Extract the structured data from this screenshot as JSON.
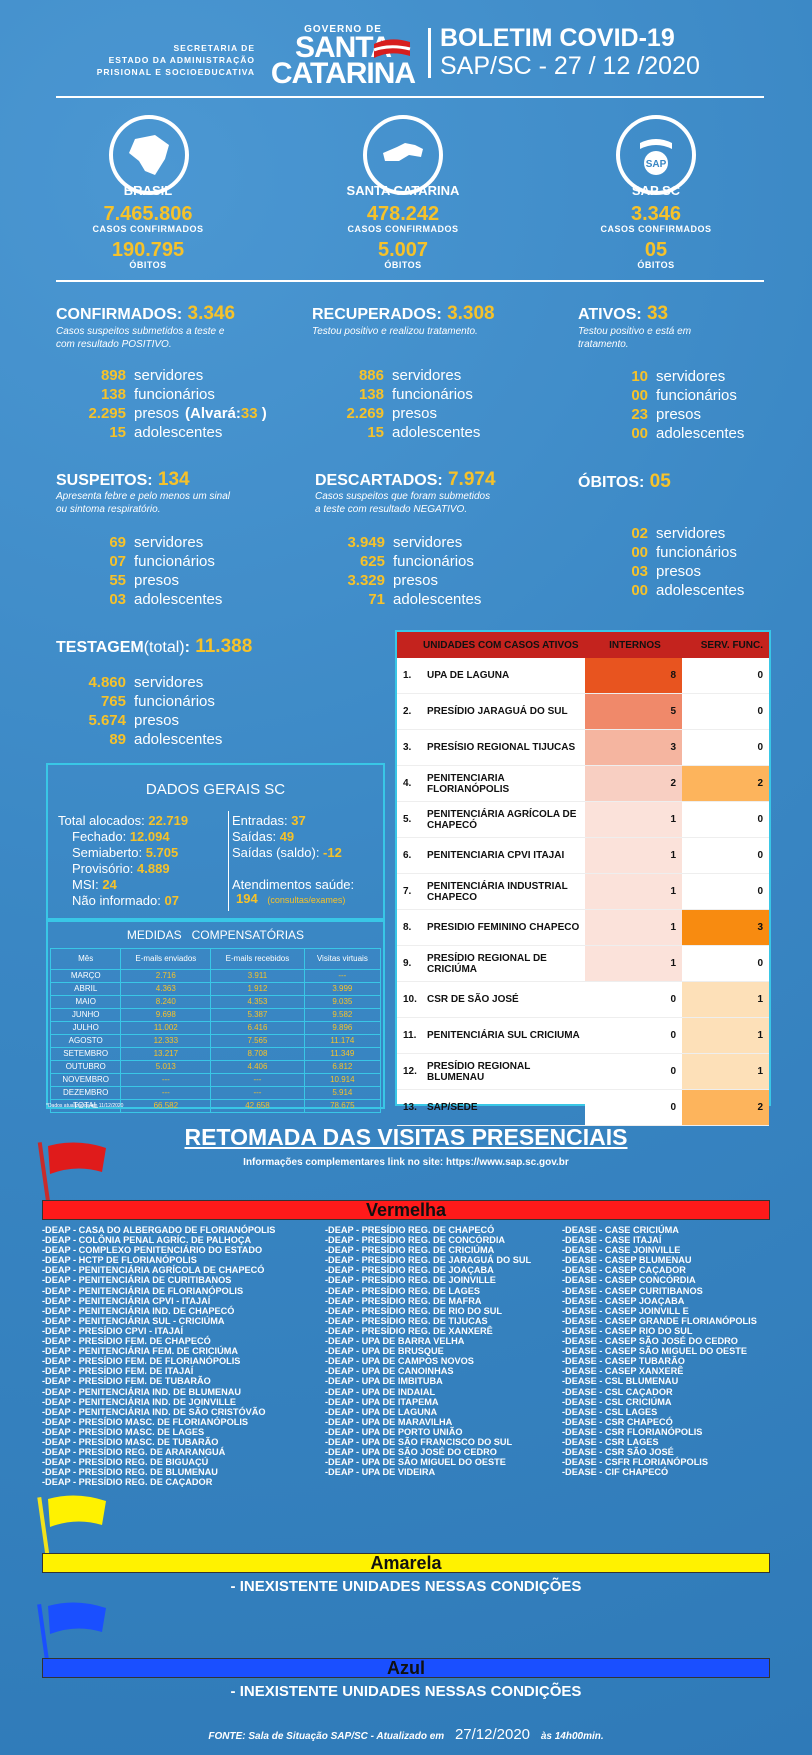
{
  "header": {
    "secretaria": [
      "SECRETARIA DE",
      "ESTADO DA ADMINISTRAÇÃO",
      "PRISIONAL E SOCIOEDUCATIVA"
    ],
    "gov_small": "GOVERNO DE",
    "gov_big1": "SANTA",
    "gov_big2": "CATARINA",
    "title1": "BOLETIM COVID-19",
    "title2": "SAP/SC - 27 / 12 /2020"
  },
  "regions": [
    {
      "name": "BRASIL",
      "casos": "7.465.806",
      "casos_label": "CASOS CONFIRMADOS",
      "obitos": "190.795",
      "obitos_label": "ÓBITOS"
    },
    {
      "name": "SANTA CATARINA",
      "casos": "478.242",
      "casos_label": "CASOS CONFIRMADOS",
      "obitos": "5.007",
      "obitos_label": "ÓBITOS"
    },
    {
      "name": "SAP SC",
      "casos": "3.346",
      "casos_label": "CASOS CONFIRMADOS",
      "obitos": "05",
      "obitos_label": "ÓBITOS",
      "logo_text": "SAP"
    }
  ],
  "sections": {
    "confirmados": {
      "label": "CONFIRMADOS:",
      "value": "3.346",
      "desc1": "Casos suspeitos submetidos a teste e",
      "desc2": "com resultado POSITIVO.",
      "rows": [
        [
          "898",
          "servidores"
        ],
        [
          "138",
          "funcionários"
        ],
        [
          "2.295",
          "presos"
        ],
        [
          "15",
          "adolescentes"
        ]
      ],
      "alvara_label": "(Alvará:",
      "alvara_value": "33",
      "alvara_close": ")"
    },
    "recuperados": {
      "label": "RECUPERADOS:",
      "value": "3.308",
      "desc1": "Testou positivo e realizou tratamento.",
      "rows": [
        [
          "886",
          "servidores"
        ],
        [
          "138",
          "funcionários"
        ],
        [
          "2.269",
          "presos"
        ],
        [
          "15",
          "adolescentes"
        ]
      ]
    },
    "ativos": {
      "label": "ATIVOS:",
      "value": "33",
      "desc1": "Testou positivo e está em",
      "desc2": " tratamento.",
      "rows": [
        [
          "10",
          "servidores"
        ],
        [
          "00",
          "funcionários"
        ],
        [
          "23",
          "presos"
        ],
        [
          "00",
          "adolescentes"
        ]
      ]
    },
    "suspeitos": {
      "label": "SUSPEITOS:",
      "value": "134",
      "desc1": "Apresenta febre e pelo menos um sinal",
      "desc2": "ou sintoma respiratório.",
      "rows": [
        [
          "69",
          "servidores"
        ],
        [
          "07",
          "funcionários"
        ],
        [
          "55",
          "presos"
        ],
        [
          "03",
          "adolescentes"
        ]
      ]
    },
    "descartados": {
      "label": "DESCARTADOS:",
      "value": "7.974",
      "desc1": "Casos suspeitos que foram submetidos",
      "desc2": " a  teste com resultado NEGATIVO.",
      "rows": [
        [
          "3.949",
          "servidores"
        ],
        [
          "625",
          "funcionários"
        ],
        [
          "3.329",
          "presos"
        ],
        [
          "71",
          "adolescentes"
        ]
      ]
    },
    "obitos": {
      "label": "ÓBITOS:",
      "value": "05",
      "rows": [
        [
          "02",
          "servidores"
        ],
        [
          "00",
          "funcionários"
        ],
        [
          "03",
          "presos"
        ],
        [
          "00",
          "adolescentes"
        ]
      ]
    },
    "testagem": {
      "label": "TESTAGEM",
      "paren": "(total)",
      "colon": ":",
      "value": "11.388",
      "rows": [
        [
          "4.860",
          "servidores"
        ],
        [
          "765",
          "funcionários"
        ],
        [
          "5.674",
          "presos"
        ],
        [
          "89",
          "adolescentes"
        ]
      ]
    }
  },
  "dados_gerais": {
    "title": "DADOS GERAIS SC",
    "left": [
      [
        "Total alocados:",
        "22.719"
      ],
      [
        "Fechado:",
        "12.094"
      ],
      [
        "Semiaberto:",
        "5.705"
      ],
      [
        "Provisório:",
        "4.889"
      ],
      [
        "MSI:",
        "24"
      ],
      [
        "Não informado:",
        "07"
      ]
    ],
    "right": [
      [
        "Entradas:",
        "37"
      ],
      [
        "Saídas:",
        "49"
      ],
      [
        "Saídas (saldo):",
        "-12"
      ]
    ],
    "atend_label": "Atendimentos saúde:",
    "atend_value": "194",
    "atend_note": "(consultas/exames)"
  },
  "medidas": {
    "title": "MEDIDAS   COMPENSATÓRIAS",
    "headers": [
      "Mês",
      "E-mails enviados",
      "E-mails recebidos",
      "Visitas virtuais"
    ],
    "rows": [
      [
        "MARÇO",
        "2.716",
        "3.911",
        "---"
      ],
      [
        "ABRIL",
        "4.363",
        "1.912",
        "3.999"
      ],
      [
        "MAIO",
        "8.240",
        "4.353",
        "9.035"
      ],
      [
        "JUNHO",
        "9.698",
        "5.387",
        "9.582"
      ],
      [
        "JULHO",
        "11.002",
        "6.416",
        "9.896"
      ],
      [
        "AGOSTO",
        "12.333",
        "7.565",
        "11.174"
      ],
      [
        "SETEMBRO",
        "13.217",
        "8.708",
        "11.349"
      ],
      [
        "OUTUBRO",
        "5.013",
        "4.406",
        "6.812"
      ],
      [
        "NOVEMBRO",
        "---",
        "---",
        "10.914"
      ],
      [
        "DEZEMBRO",
        "---",
        "---",
        "5.914"
      ],
      [
        "TOTAL",
        "66.582",
        "42.658",
        "78.675"
      ]
    ],
    "note": "*Dados atualizados em 11/12/2020"
  },
  "unidades": {
    "head": [
      "UNIDADES COM CASOS ATIVOS",
      "INTERNOS",
      "SERV. FUNC."
    ],
    "rows": [
      {
        "n": "1.",
        "name": "UPA DE LAGUNA",
        "internos": 8,
        "serv": 0,
        "ic": "#e8541f",
        "sc": "#ffffff"
      },
      {
        "n": "2.",
        "name": "PRESÍDIO JARAGUÁ DO SUL",
        "internos": 5,
        "serv": 0,
        "ic": "#f0896a",
        "sc": "#ffffff"
      },
      {
        "n": "3.",
        "name": "PRESÍSIO REGIONAL TIJUCAS",
        "internos": 3,
        "serv": 0,
        "ic": "#f5b5a0",
        "sc": "#ffffff"
      },
      {
        "n": "4.",
        "name": "PENITENCIARIA FLORIANÓPOLIS",
        "internos": 2,
        "serv": 2,
        "ic": "#f8cfc2",
        "sc": "#fdb45c"
      },
      {
        "n": "5.",
        "name": "PENITENCIÁRIA AGRÍCOLA DE CHAPECÓ",
        "internos": 1,
        "serv": 0,
        "ic": "#fbe2da",
        "sc": "#ffffff"
      },
      {
        "n": "6.",
        "name": "PENITENCIARIA CPVI ITAJAI",
        "internos": 1,
        "serv": 0,
        "ic": "#fbe2da",
        "sc": "#ffffff"
      },
      {
        "n": "7.",
        "name": "PENITENCIÁRIA INDUSTRIAL CHAPECO",
        "internos": 1,
        "serv": 0,
        "ic": "#fbe2da",
        "sc": "#ffffff"
      },
      {
        "n": "8.",
        "name": "PRESIDIO FEMININO CHAPECO",
        "internos": 1,
        "serv": 3,
        "ic": "#fbe2da",
        "sc": "#f88b10"
      },
      {
        "n": "9.",
        "name": "PRESÍDIO REGIONAL DE CRICIÚMA",
        "internos": 1,
        "serv": 0,
        "ic": "#fbe2da",
        "sc": "#ffffff"
      },
      {
        "n": "10.",
        "name": "CSR DE SÃO JOSÉ",
        "internos": 0,
        "serv": 1,
        "ic": "#ffffff",
        "sc": "#fde0b8"
      },
      {
        "n": "11.",
        "name": "PENITENCIÁRIA SUL CRICIUMA",
        "internos": 0,
        "serv": 1,
        "ic": "#ffffff",
        "sc": "#fde0b8"
      },
      {
        "n": "12.",
        "name": "PRESÍDIO REGIONAL BLUMENAU",
        "internos": 0,
        "serv": 1,
        "ic": "#ffffff",
        "sc": "#fde0b8"
      },
      {
        "n": "13.",
        "name": "SAP/SEDE",
        "internos": 0,
        "serv": 2,
        "ic": "#ffffff",
        "sc": "#fdb45c"
      }
    ]
  },
  "retomada": {
    "title": "RETOMADA DAS VISITAS PRESENCIAIS",
    "subtitle": "Informações complementares link no site: https://www.sap.sc.gov.br"
  },
  "vermelha": {
    "label": "Vermelha",
    "color": "#ff1a1a",
    "col1": [
      "-DEAP - CASA DO ALBERGADO DE FLORIANÓPOLIS",
      "-DEAP - COLÔNIA PENAL AGRÍC. DE PALHOÇA",
      "-DEAP - COMPLEXO PENITENCIÁRIO DO ESTADO",
      "-DEAP - HCTP DE FLORIANÓPOLIS",
      "-DEAP - PENITENCIÁRIA AGRÍCOLA DE CHAPECÓ",
      "-DEAP - PENITENCIÁRIA DE CURITIBANOS",
      "-DEAP - PENITENCIÁRIA DE FLORIANÓPOLIS",
      "-DEAP - PENITENCIÁRIA CPVI - ITAJAÍ",
      "-DEAP - PENITENCIÁRIA IND. DE CHAPECÓ",
      "-DEAP - PENITENCIÁRIA SUL - CRICIÚMA",
      "-DEAP - PRESÍDIO CPVI - ITAJAÍ",
      "-DEAP - PRESÍDIO FEM. DE CHAPECÓ",
      "-DEAP - PENITENCIÁRIA FEM. DE CRICIÚMA",
      "-DEAP - PRESÍDIO FEM. DE FLORIANÓPOLIS",
      "-DEAP - PRESÍDIO FEM. DE ITAJAÍ",
      "-DEAP - PRESÍDIO FEM. DE TUBARÃO",
      "-DEAP - PENITENCIÁRIA IND. DE BLUMENAU",
      "-DEAP - PENITENCIÁRIA IND. DE JOINVILLE",
      "-DEAP - PENITENCIÁRIA IND. DE SÃO CRISTÓVÃO",
      "-DEAP - PRESÍDIO MASC. DE FLORIANÓPOLIS",
      "-DEAP - PRESÍDIO MASC. DE LAGES",
      "-DEAP - PRESÍDIO MASC. DE TUBARÃO",
      "-DEAP - PRESÍDIO REG. DE ARARANGUÁ",
      "-DEAP - PRESÍDIO REG. DE BIGUAÇÚ",
      "-DEAP - PRESÍDIO REG. DE BLUMENAU",
      "-DEAP - PRESÍDIO REG. DE CAÇADOR"
    ],
    "col2": [
      "-DEAP - PRESÍDIO REG. DE CHAPECÓ",
      "-DEAP - PRESÍDIO REG. DE CONCÓRDIA",
      "-DEAP - PRESÍDIO REG. DE CRICIÚMA",
      "-DEAP - PRESÍDIO REG. DE JARAGUÁ DO SUL",
      "-DEAP - PRESÍDIO REG. DE JOAÇABA",
      "-DEAP - PRESÍDIO REG. DE JOINVILLE",
      "-DEAP - PRESÍDIO REG. DE LAGES",
      "-DEAP - PRESÍDIO REG. DE MAFRA",
      "-DEAP - PRESÍDIO REG. DE RIO DO SUL",
      "-DEAP - PRESÍDIO REG. DE TIJUCAS",
      "-DEAP - PRESÍDIO REG. DE XANXERÊ",
      "-DEAP - UPA DE BARRA VELHA",
      "-DEAP - UPA DE BRUSQUE",
      "-DEAP - UPA DE CAMPOS NOVOS",
      "-DEAP - UPA DE CANOINHAS",
      "-DEAP - UPA DE IMBITUBA",
      "-DEAP - UPA DE INDAIAL",
      "-DEAP - UPA DE ITAPEMA",
      "-DEAP - UPA DE LAGUNA",
      "-DEAP - UPA DE MARAVILHA",
      "-DEAP - UPA DE PORTO UNIÃO",
      "-DEAP - UPA DE SÃO FRANCISCO DO SUL",
      "-DEAP - UPA DE SÃO JOSÉ DO CEDRO",
      "-DEAP - UPA DE SÃO MIGUEL DO OESTE",
      "-DEAP - UPA DE VIDEIRA"
    ],
    "col3": [
      "-DEASE - CASE CRICIÚMA",
      "-DEASE - CASE ITAJAÍ",
      "-DEASE - CASE JOINVILLE",
      "-DEASE - CASEP BLUMENAU",
      "-DEASE - CASEP CAÇADOR",
      "-DEASE - CASEP CONCÓRDIA",
      "-DEASE - CASEP CURITIBANOS",
      "-DEASE - CASEP JOAÇABA",
      "-DEASE - CASEP JOINVILL E",
      "-DEASE - CASEP GRANDE FLORIANÓPOLIS",
      "-DEASE - CASEP RIO DO SUL",
      "-DEASE - CASEP SÃO JOSÉ DO CEDRO",
      "-DEASE - CASEP SÃO MIGUEL DO OESTE",
      "-DEASE - CASEP TUBARÃO",
      "-DEASE - CASEP XANXERÊ",
      "-DEASE - CSL BLUMENAU",
      "-DEASE - CSL CAÇADOR",
      "-DEASE - CSL CRICIÚMA",
      "-DEASE - CSL LAGES",
      "-DEASE - CSR CHAPECÓ",
      "-DEASE - CSR FLORIANÓPOLIS",
      "-DEASE - CSR LAGES",
      "-DEASE - CSR SÃO JOSÉ",
      "-DEASE - CSFR FLORIANÓPOLIS",
      "-DEASE - CIF CHAPECÓ"
    ]
  },
  "amarela": {
    "label": "Amarela",
    "color": "#fff200",
    "text": "- INEXISTENTE UNIDADES NESSAS  CONDIÇÕES"
  },
  "azul": {
    "label": "Azul",
    "color": "#1a4fff",
    "text": "- INEXISTENTE UNIDADES NESSAS  CONDIÇÕES"
  },
  "footer": {
    "pre": "FONTE: Sala de Situação SAP/SC - Atualizado em",
    "date": "27/12/2020",
    "post": "às 14h00min."
  }
}
